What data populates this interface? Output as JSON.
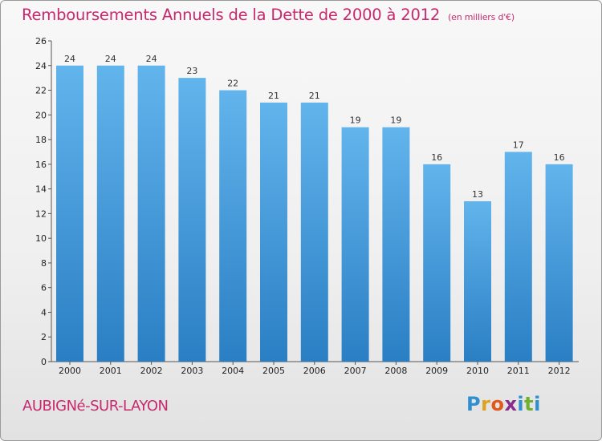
{
  "title": "Remboursements Annuels de la Dette de 2000 à 2012",
  "subtitle": "(en milliers d'€)",
  "commune": "AUBIGNé-SUR-LAYON",
  "logo": {
    "letters": [
      "P",
      "r",
      "o",
      "x",
      "i",
      "t",
      "i"
    ],
    "colors": [
      "#2f8fd0",
      "#e0a020",
      "#e05a1a",
      "#8a2c8c",
      "#2f8fd0",
      "#70b030",
      "#2f8fd0"
    ]
  },
  "colors": {
    "bar_top": "#62b4ec",
    "bar_bottom": "#2a7fc4",
    "title": "#c8296e"
  },
  "chart_data": {
    "type": "bar",
    "title": "Remboursements Annuels de la Dette de 2000 à 2012",
    "ylabel": "",
    "xlabel": "",
    "categories": [
      "2000",
      "2001",
      "2002",
      "2003",
      "2004",
      "2005",
      "2006",
      "2007",
      "2008",
      "2009",
      "2010",
      "2011",
      "2012"
    ],
    "values": [
      24,
      24,
      24,
      23,
      22,
      21,
      21,
      19,
      19,
      16,
      13,
      17,
      16
    ],
    "ylim": [
      0,
      26
    ],
    "yticks": [
      0,
      2,
      4,
      6,
      8,
      10,
      12,
      14,
      16,
      18,
      20,
      22,
      24,
      26
    ],
    "grid": false
  }
}
